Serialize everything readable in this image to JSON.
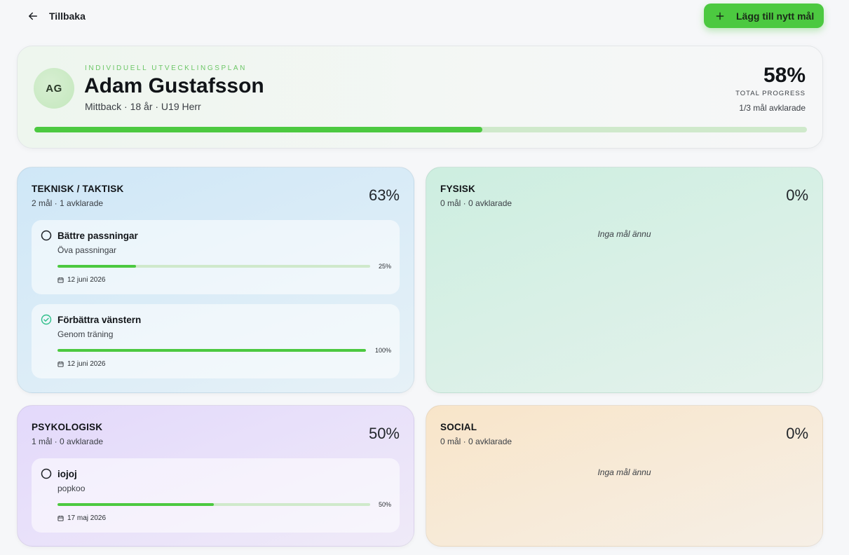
{
  "topbar": {
    "back_label": "Tillbaka",
    "add_label": "Lägg till nytt mål"
  },
  "player": {
    "initials": "AG",
    "kicker": "INDIVIDUELL UTVECKLINGSPLAN",
    "name": "Adam Gustafsson",
    "subtitle": "Mittback · 18 år · U19 Herr",
    "progress_text": "58%",
    "progress_value": 58,
    "progress_label": "TOTAL PROGRESS",
    "goals_done_text": "1/3 mål avklarade"
  },
  "categories": [
    {
      "title": "TEKNISK / TAKTISK",
      "summary": "2 mål · 1 avklarade",
      "pct_text": "63%",
      "goals": [
        {
          "title": "Bättre passningar",
          "desc": "Öva passningar",
          "progress": 25,
          "pct_text": "25%",
          "date": "12 juni 2026",
          "done": false
        },
        {
          "title": "Förbättra vänstern",
          "desc": "Genom träning",
          "progress": 100,
          "pct_text": "100%",
          "date": "12 juni 2026",
          "done": true
        }
      ]
    },
    {
      "title": "FYSISK",
      "summary": "0 mål · 0 avklarade",
      "pct_text": "0%",
      "empty_text": "Inga mål ännu"
    },
    {
      "title": "PSYKOLOGISK",
      "summary": "1 mål · 0 avklarade",
      "pct_text": "50%",
      "goals": [
        {
          "title": "iojoj",
          "desc": "popkoo",
          "progress": 50,
          "pct_text": "50%",
          "date": "17 maj 2026",
          "done": false
        }
      ]
    },
    {
      "title": "SOCIAL",
      "summary": "0 mål · 0 avklarade",
      "pct_text": "0%",
      "empty_text": "Inga mål ännu"
    }
  ],
  "colors": {
    "accent": "#4cc940",
    "track": "#cfe9cb",
    "done_check": "#2fbf8a"
  }
}
